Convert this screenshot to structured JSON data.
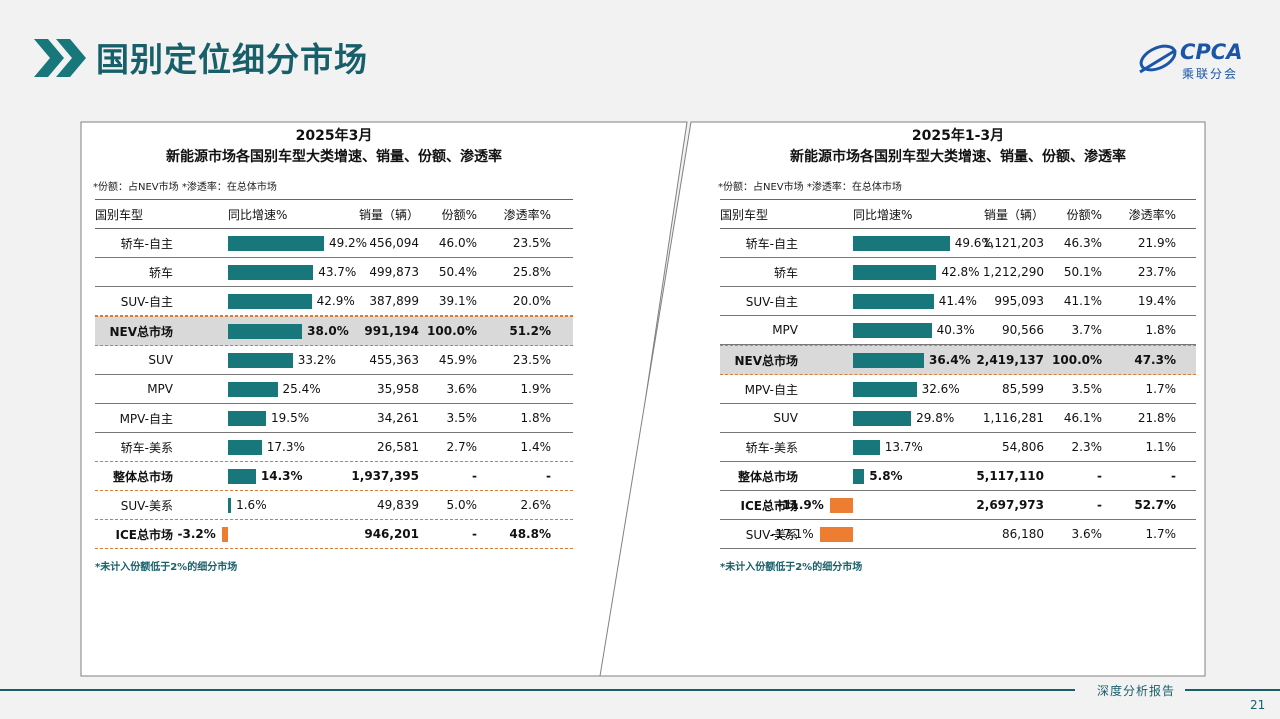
{
  "header": {
    "title": "国别定位细分市场"
  },
  "logo": {
    "text": "CPCA",
    "cn": "乘联分会"
  },
  "colors": {
    "teal": "#17777a",
    "orange": "#ed7d31",
    "title": "#17606a"
  },
  "footer": {
    "label": "深度分析报告",
    "page": "21"
  },
  "left": {
    "title1": "2025年3月",
    "title2": "新能源市场各国别车型大类增速、销量、份额、渗透率",
    "note": "*份额：占NEV市场   *渗透率：在总体市场",
    "headers": {
      "name": "国别车型",
      "growth": "同比增速%",
      "sales": "销量（辆）",
      "share": "份额%",
      "pen": "渗透率%"
    },
    "footnote": "*未计入份额低于2%的细分市场"
  },
  "right": {
    "title1": "2025年1-3月",
    "title2": "新能源市场各国别车型大类增速、销量、份额、渗透率",
    "note": "*份额：占NEV市场   *渗透率：在总体市场",
    "headers": {
      "name": "国别车型",
      "growth": "同比增速%",
      "sales": "销量（辆）",
      "share": "份额%",
      "pen": "渗透率%"
    },
    "footnote": "*未计入份额低于2%的细分市场"
  },
  "chart_data": [
    {
      "type": "table",
      "title": "2025年3月 新能源市场各国别车型大类增速、销量、份额、渗透率",
      "columns": [
        "国别车型",
        "同比增速%",
        "销量（辆）",
        "份额%",
        "渗透率%"
      ],
      "rows": [
        {
          "name": "轿车-自主",
          "growth": 49.2,
          "growth_label": "49.2%",
          "sales": "456,094",
          "share": "46.0%",
          "pen": "23.5%",
          "style": ""
        },
        {
          "name": "轿车",
          "growth": 43.7,
          "growth_label": "43.7%",
          "sales": "499,873",
          "share": "50.4%",
          "pen": "25.8%",
          "style": ""
        },
        {
          "name": "SUV-自主",
          "growth": 42.9,
          "growth_label": "42.9%",
          "sales": "387,899",
          "share": "39.1%",
          "pen": "20.0%",
          "style": "dashed"
        },
        {
          "name": "NEV总市场",
          "growth": 38.0,
          "growth_label": "38.0%",
          "sales": "991,194",
          "share": "100.0%",
          "pen": "51.2%",
          "style": "highlight"
        },
        {
          "name": "SUV",
          "growth": 33.2,
          "growth_label": "33.2%",
          "sales": "455,363",
          "share": "45.9%",
          "pen": "23.5%",
          "style": ""
        },
        {
          "name": "MPV",
          "growth": 25.4,
          "growth_label": "25.4%",
          "sales": "35,958",
          "share": "3.6%",
          "pen": "1.9%",
          "style": ""
        },
        {
          "name": "MPV-自主",
          "growth": 19.5,
          "growth_label": "19.5%",
          "sales": "34,261",
          "share": "3.5%",
          "pen": "1.8%",
          "style": ""
        },
        {
          "name": "轿车-美系",
          "growth": 17.3,
          "growth_label": "17.3%",
          "sales": "26,581",
          "share": "2.7%",
          "pen": "1.4%",
          "style": "dashed"
        },
        {
          "name": "整体总市场",
          "growth": 14.3,
          "growth_label": "14.3%",
          "sales": "1,937,395",
          "share": "-",
          "pen": "-",
          "style": "bold dashed"
        },
        {
          "name": "SUV-美系",
          "growth": 1.6,
          "growth_label": "1.6%",
          "sales": "49,839",
          "share": "5.0%",
          "pen": "2.6%",
          "style": "dashed"
        },
        {
          "name": "ICE总市场",
          "growth": -3.2,
          "growth_label": "-3.2%",
          "sales": "946,201",
          "share": "-",
          "pen": "48.8%",
          "style": "bold dashed"
        }
      ]
    },
    {
      "type": "table",
      "title": "2025年1-3月 新能源市场各国别车型大类增速、销量、份额、渗透率",
      "columns": [
        "国别车型",
        "同比增速%",
        "销量（辆）",
        "份额%",
        "渗透率%"
      ],
      "rows": [
        {
          "name": "轿车-自主",
          "growth": 49.6,
          "growth_label": "49.6%",
          "sales": "1,121,203",
          "share": "46.3%",
          "pen": "21.9%",
          "style": ""
        },
        {
          "name": "轿车",
          "growth": 42.8,
          "growth_label": "42.8%",
          "sales": "1,212,290",
          "share": "50.1%",
          "pen": "23.7%",
          "style": ""
        },
        {
          "name": "SUV-自主",
          "growth": 41.4,
          "growth_label": "41.4%",
          "sales": "995,093",
          "share": "41.1%",
          "pen": "19.4%",
          "style": ""
        },
        {
          "name": "MPV",
          "growth": 40.3,
          "growth_label": "40.3%",
          "sales": "90,566",
          "share": "3.7%",
          "pen": "1.8%",
          "style": ""
        },
        {
          "name": "NEV总市场",
          "growth": 36.4,
          "growth_label": "36.4%",
          "sales": "2,419,137",
          "share": "100.0%",
          "pen": "47.3%",
          "style": "highlight"
        },
        {
          "name": "MPV-自主",
          "growth": 32.6,
          "growth_label": "32.6%",
          "sales": "85,599",
          "share": "3.5%",
          "pen": "1.7%",
          "style": ""
        },
        {
          "name": "SUV",
          "growth": 29.8,
          "growth_label": "29.8%",
          "sales": "1,116,281",
          "share": "46.1%",
          "pen": "21.8%",
          "style": ""
        },
        {
          "name": "轿车-美系",
          "growth": 13.7,
          "growth_label": "13.7%",
          "sales": "54,806",
          "share": "2.3%",
          "pen": "1.1%",
          "style": ""
        },
        {
          "name": "整体总市场",
          "growth": 5.8,
          "growth_label": "5.8%",
          "sales": "5,117,110",
          "share": "-",
          "pen": "-",
          "style": "bold"
        },
        {
          "name": "ICE总市场",
          "growth": -11.9,
          "growth_label": "-11.9%",
          "sales": "2,697,973",
          "share": "-",
          "pen": "52.7%",
          "style": "bold"
        },
        {
          "name": "SUV-美系",
          "growth": -17.1,
          "growth_label": "-17.1%",
          "sales": "86,180",
          "share": "3.6%",
          "pen": "1.7%",
          "style": ""
        }
      ]
    }
  ]
}
